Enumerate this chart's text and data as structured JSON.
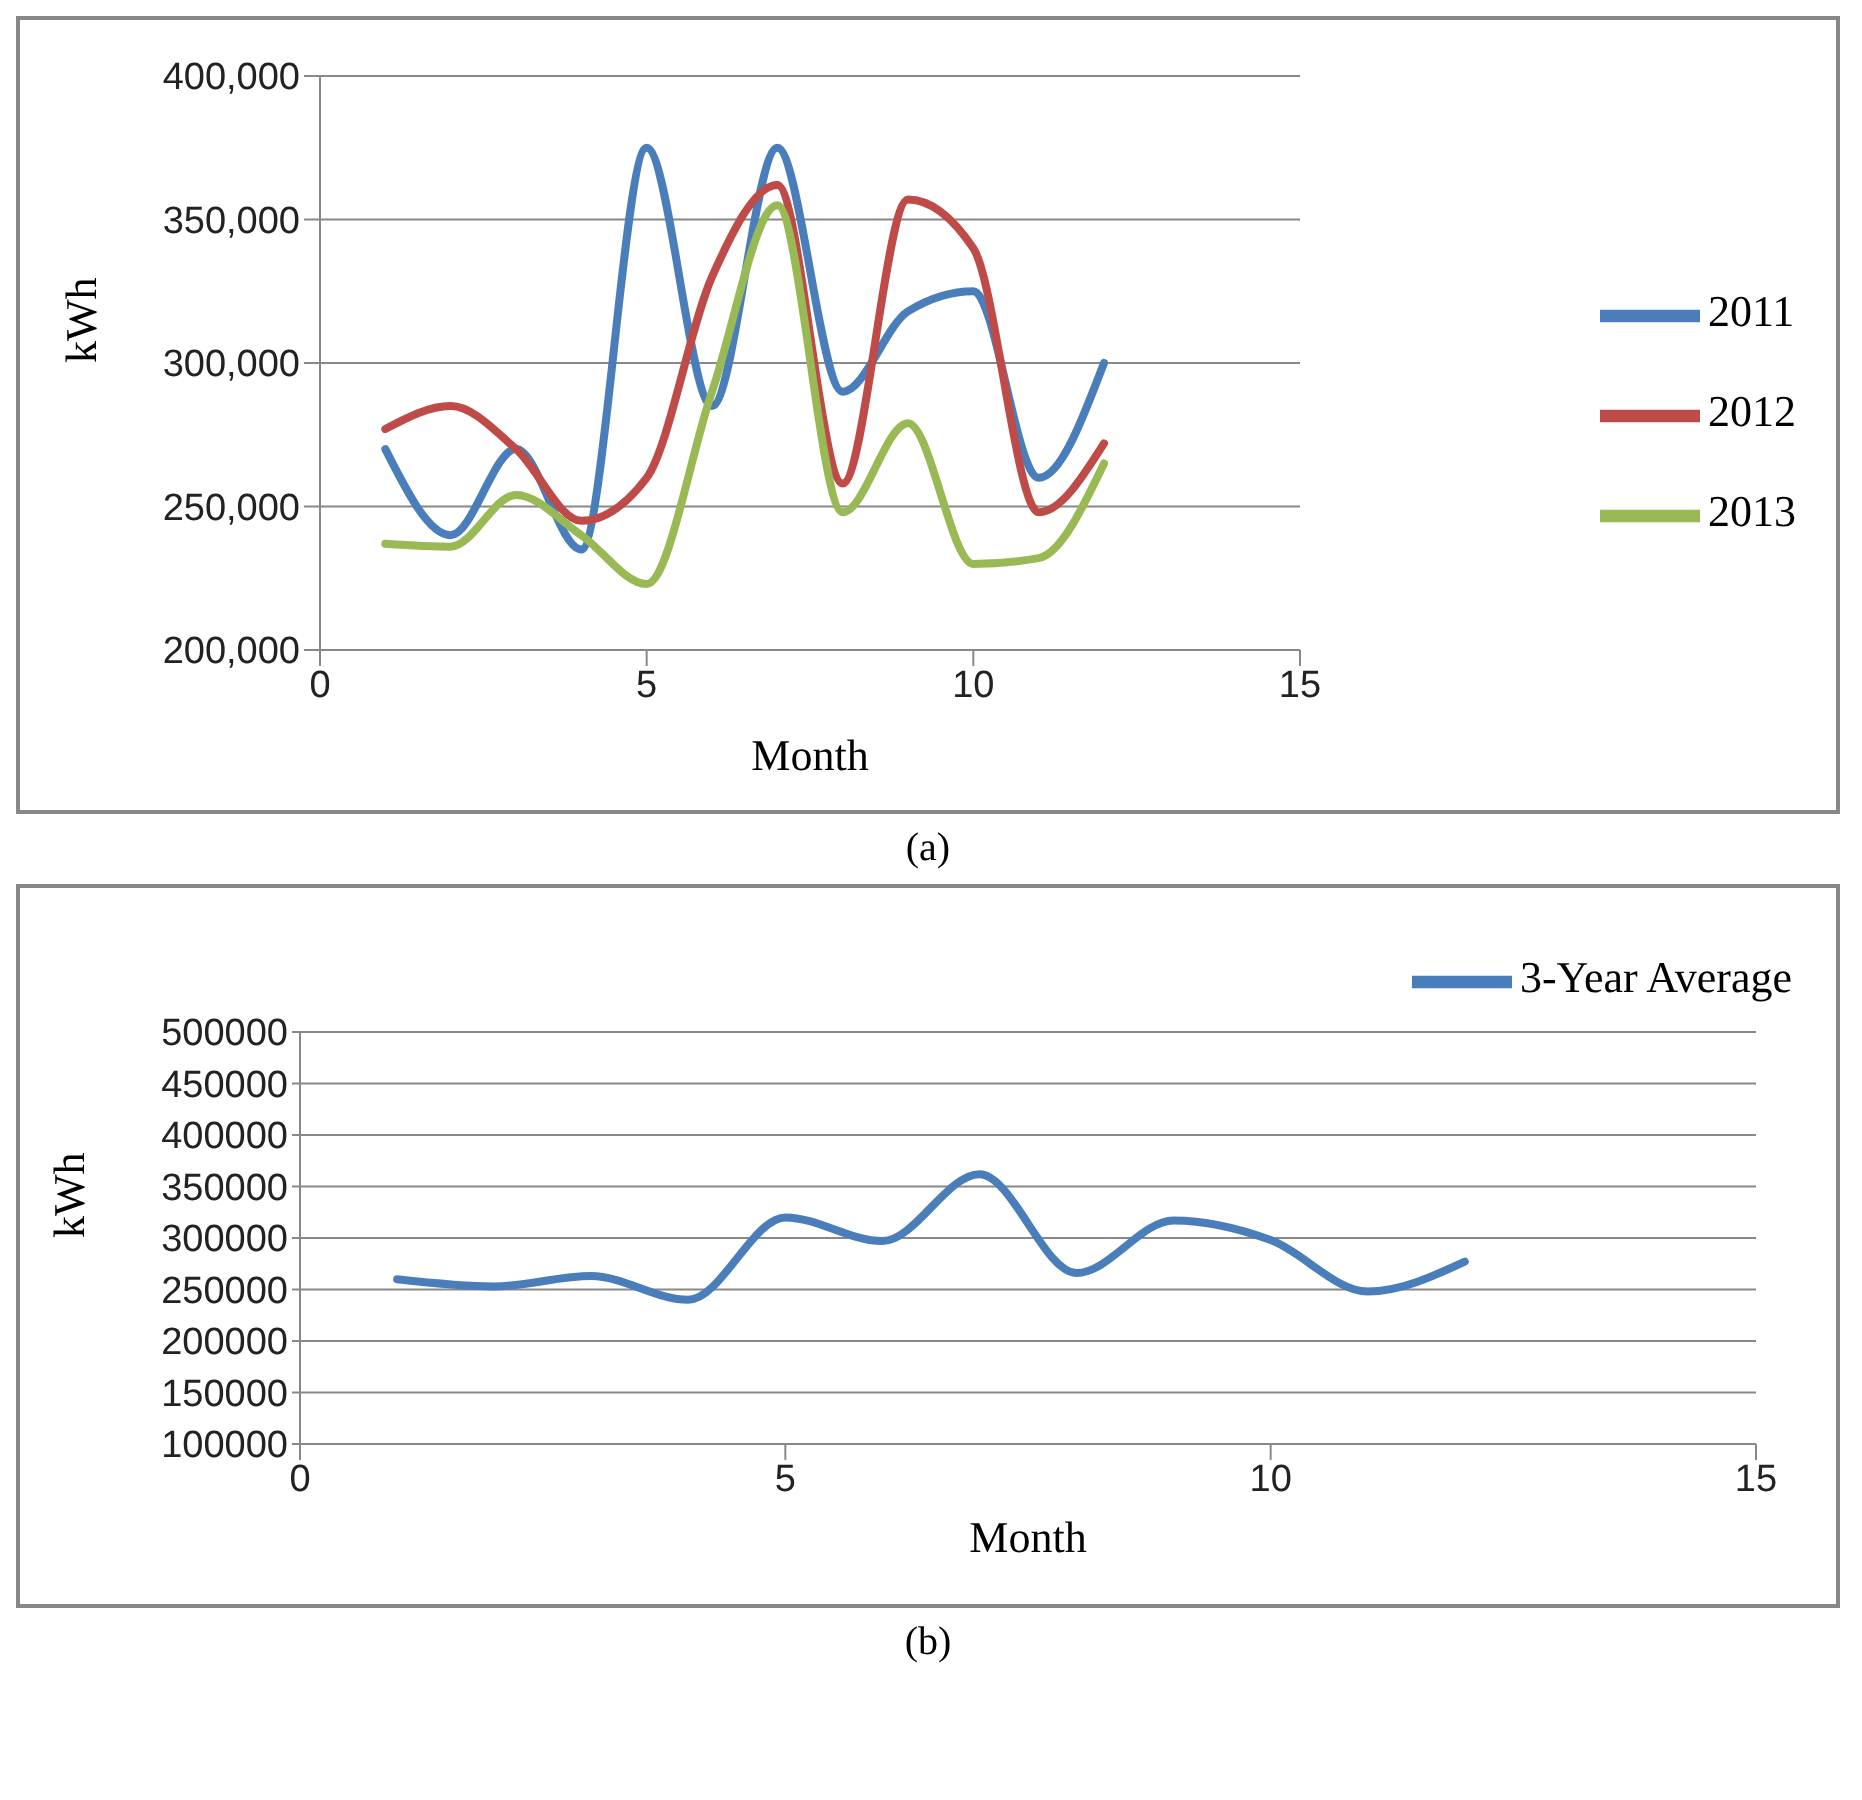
{
  "chart_data": [
    {
      "type": "line",
      "xlabel": "Month",
      "ylabel": "kWh",
      "annotations": [
        "(a)"
      ],
      "x": [
        1,
        2,
        3,
        4,
        5,
        6,
        7,
        8,
        9,
        10,
        11,
        12
      ],
      "series": [
        {
          "name": "2011",
          "color": "#4a7ebb",
          "values": [
            270000,
            240000,
            270000,
            235000,
            375000,
            285000,
            375000,
            290000,
            318000,
            325000,
            260000,
            300000
          ]
        },
        {
          "name": "2012",
          "color": "#be4b48",
          "values": [
            277000,
            285000,
            270000,
            245000,
            260000,
            330000,
            362000,
            258000,
            357000,
            340000,
            248000,
            272000
          ]
        },
        {
          "name": "2013",
          "color": "#98b954",
          "values": [
            237000,
            236000,
            254000,
            240000,
            223000,
            290000,
            355000,
            248000,
            279000,
            230000,
            232000,
            265000
          ]
        }
      ],
      "xlim": [
        0,
        15
      ],
      "xticks": [
        0,
        5,
        10,
        15
      ],
      "ylim": [
        200000,
        400000
      ],
      "yticks": [
        {
          "value": 200000,
          "label": "200,000"
        },
        {
          "value": 250000,
          "label": "250,000"
        },
        {
          "value": 300000,
          "label": "300,000"
        },
        {
          "value": 350000,
          "label": "350,000"
        },
        {
          "value": 400000,
          "label": "400,000"
        }
      ],
      "grid": "y",
      "legend": "right",
      "marker": "none",
      "line_style": "solid"
    },
    {
      "type": "line",
      "xlabel": "Month",
      "ylabel": "kWh",
      "annotations": [
        "(b)"
      ],
      "x": [
        1,
        2,
        3,
        4,
        5,
        6,
        7,
        8,
        9,
        10,
        11,
        12
      ],
      "series": [
        {
          "name": "3-Year Average",
          "color": "#4a7ebb",
          "values": [
            260000,
            253000,
            263000,
            240000,
            320000,
            297000,
            362000,
            266000,
            317000,
            298000,
            248000,
            277000
          ]
        }
      ],
      "xlim": [
        0,
        15
      ],
      "xticks": [
        0,
        5,
        10,
        15
      ],
      "ylim": [
        100000,
        500000
      ],
      "yticks": [
        100000,
        150000,
        200000,
        250000,
        300000,
        350000,
        400000,
        450000,
        500000
      ],
      "grid": "y",
      "legend": "top right",
      "marker": "none",
      "line_style": "solid"
    }
  ]
}
